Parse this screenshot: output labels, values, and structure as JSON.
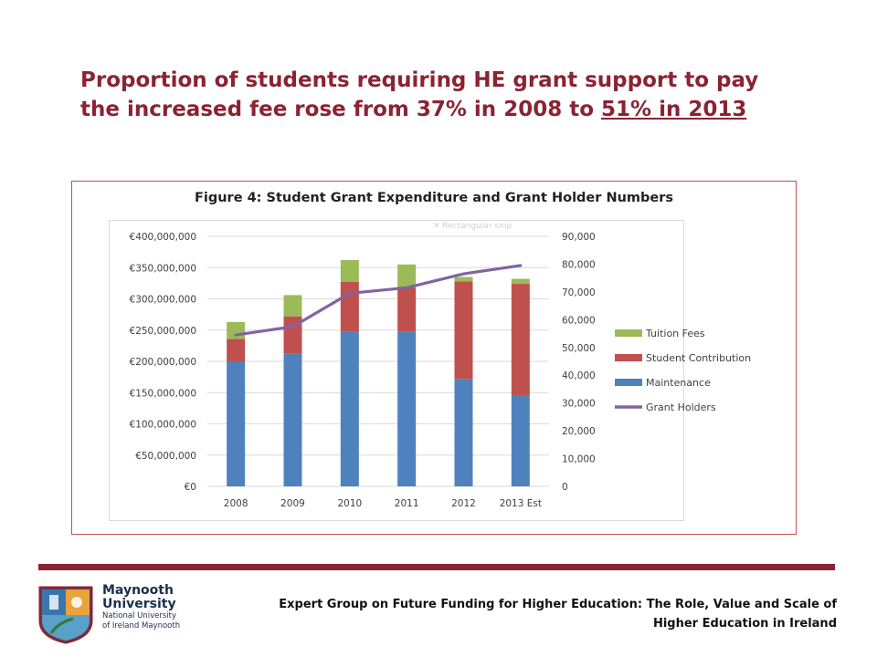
{
  "slide": {
    "headline_part1": "Proportion of students requiring HE grant support to pay the increased fee rose from 37% in 2008 to ",
    "headline_underlined": "51% in 2013",
    "footer_line1": "Expert Group on Future Funding for Higher Education: The Role, Value and Scale of",
    "footer_line2": "Higher Education in Ireland",
    "logo_line1": "Maynooth",
    "logo_line2": "University",
    "logo_line3": "National University",
    "logo_line4": "of Ireland Maynooth",
    "accent_color": "#8b2332"
  },
  "chart_data": {
    "type": "bar",
    "title": "Figure 4:  Student Grant Expenditure and Grant Holder Numbers",
    "ghost_label": "Rectangular snip",
    "categories": [
      "2008",
      "2009",
      "2010",
      "2011",
      "2012",
      "2013 Est"
    ],
    "stacked": true,
    "series": [
      {
        "name": "Maintenance",
        "color": "#4f81bd",
        "values": [
          200000000,
          213000000,
          247000000,
          248000000,
          172000000,
          146000000
        ]
      },
      {
        "name": "Student Contribution",
        "color": "#c0504d",
        "values": [
          36000000,
          59000000,
          80000000,
          70000000,
          156000000,
          178000000
        ]
      },
      {
        "name": "Tuition Fees",
        "color": "#9bbb59",
        "values": [
          27000000,
          34000000,
          35000000,
          37000000,
          7000000,
          8000000
        ]
      }
    ],
    "line_series": {
      "name": "Grant Holders",
      "color": "#8064a2",
      "axis": "right",
      "values": [
        54500,
        57500,
        69500,
        71500,
        76500,
        79500
      ]
    },
    "ylim": [
      0,
      400000000
    ],
    "y_ticks": [
      "€0",
      "€50,000,000",
      "€100,000,000",
      "€150,000,000",
      "€200,000,000",
      "€250,000,000",
      "€300,000,000",
      "€350,000,000",
      "€400,000,000"
    ],
    "y2lim": [
      0,
      90000
    ],
    "y2_ticks": [
      "0",
      "10,000",
      "20,000",
      "30,000",
      "40,000",
      "50,000",
      "60,000",
      "70,000",
      "80,000",
      "90,000"
    ],
    "legend": [
      "Tuition Fees",
      "Student Contribution",
      "Maintenance",
      "Grant Holders"
    ],
    "legend_position": "right",
    "grid": true
  }
}
